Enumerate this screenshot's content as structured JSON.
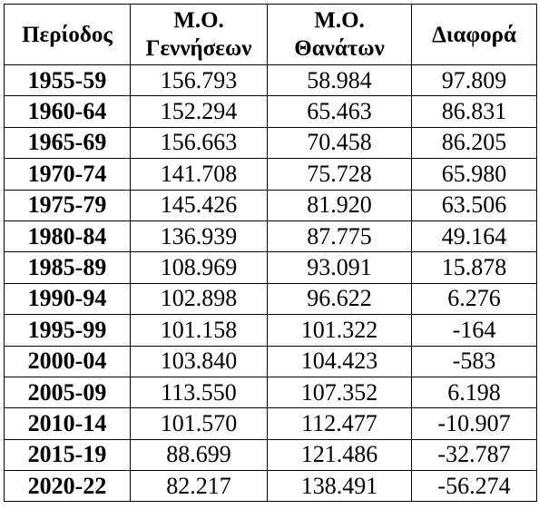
{
  "table": {
    "headers": {
      "period": "Περίοδος",
      "births_line1": "Μ.Ο.",
      "births_line2": "Γεννήσεων",
      "deaths_line1": "Μ.Ο.",
      "deaths_line2": "Θανάτων",
      "difference": "Διαφορά"
    },
    "rows": [
      {
        "period": "1955-59",
        "births": "156.793",
        "deaths": "58.984",
        "difference": "97.809"
      },
      {
        "period": "1960-64",
        "births": "152.294",
        "deaths": "65.463",
        "difference": "86.831"
      },
      {
        "period": "1965-69",
        "births": "156.663",
        "deaths": "70.458",
        "difference": "86.205"
      },
      {
        "period": "1970-74",
        "births": "141.708",
        "deaths": "75.728",
        "difference": "65.980"
      },
      {
        "period": "1975-79",
        "births": "145.426",
        "deaths": "81.920",
        "difference": "63.506"
      },
      {
        "period": "1980-84",
        "births": "136.939",
        "deaths": "87.775",
        "difference": "49.164"
      },
      {
        "period": "1985-89",
        "births": "108.969",
        "deaths": "93.091",
        "difference": "15.878"
      },
      {
        "period": "1990-94",
        "births": "102.898",
        "deaths": "96.622",
        "difference": "6.276"
      },
      {
        "period": "1995-99",
        "births": "101.158",
        "deaths": "101.322",
        "difference": "-164"
      },
      {
        "period": "2000-04",
        "births": "103.840",
        "deaths": "104.423",
        "difference": "-583"
      },
      {
        "period": "2005-09",
        "births": "113.550",
        "deaths": "107.352",
        "difference": "6.198"
      },
      {
        "period": "2010-14",
        "births": "101.570",
        "deaths": "112.477",
        "difference": "-10.907"
      },
      {
        "period": "2015-19",
        "births": "88.699",
        "deaths": "121.486",
        "difference": "-32.787"
      },
      {
        "period": "2020-22",
        "births": "82.217",
        "deaths": "138.491",
        "difference": "-56.274"
      }
    ]
  }
}
